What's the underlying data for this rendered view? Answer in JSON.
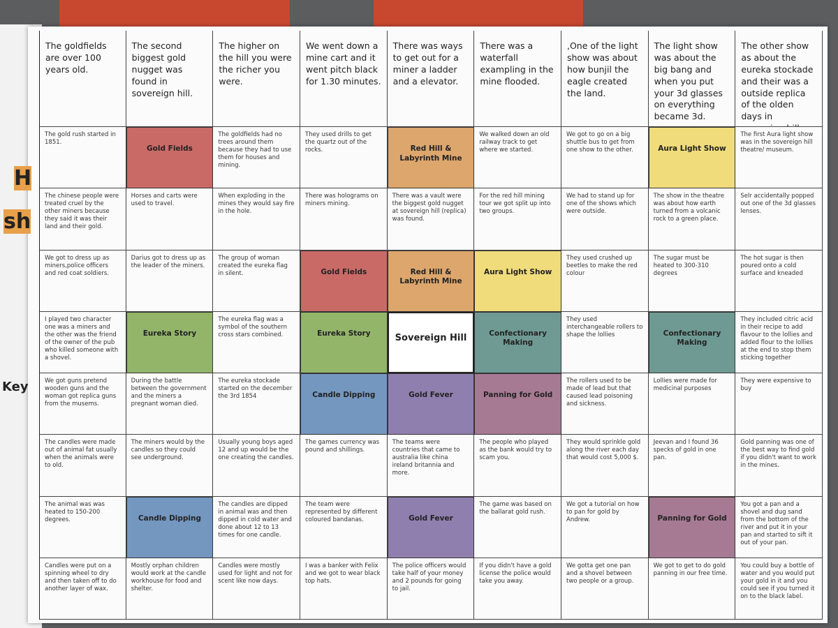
{
  "margin_fragments": [
    "H",
    "sh",
    "Key"
  ],
  "grid": {
    "rows": [
      [
        "The goldfields are over 100 years old.",
        "The second biggest gold nugget was found in sovereign hill.",
        "The higher on the hill you were the richer you were.",
        "We went down a mine cart and it went pitch black for 1.30 minutes.",
        "There was ways to get out for a miner a ladder and a elevator.",
        "There was a waterfall exampling in the mine flooded.",
        ",One of the light show was about how bunjil the eagle created the land.",
        "The light show was about the big bang and when you put your 3d glasses on everything became 3d.",
        "The other show as about the eureka stockade and their was a outside replica of the olden days in sovereign hill."
      ],
      [
        "The gold rush started in 1851.",
        {
          "text": "Gold Fields",
          "color": "#c96a67"
        },
        "The goldfields had no trees around them because they had to use them for houses and mining.",
        "They used drills to get the quartz out of the rocks.",
        {
          "text": "Red Hill & Labyrinth Mine",
          "color": "#dca66d"
        },
        "We walked down an old railway track to get where we started.",
        "We got to go on a big shuttle bus to get from one show to the other.",
        {
          "text": "Aura Light Show",
          "color": "#f0dc7a"
        },
        "The first Aura light show was in the sovereign hill theatre/ museum."
      ],
      [
        "The chinese people were treated cruel by the other miners because they said it was their land and their gold.",
        "Horses and carts were used to travel.",
        "When exploding in the mines they would say fire in the hole.",
        "There was holograms on miners mining.",
        "There was a vault were the biggest gold nugget at sovereign hill (replica) was found.",
        "For the red hill mining tour we got split up into two groups.",
        "We had to stand up for one of the shows which were outside.",
        "The show in the theatre was about how earth turned from a volcanic rock to a green place.",
        "Selr accidentally popped out one of the 3d glasses lenses."
      ],
      [
        "We got to dress up as miners,police officers and red coat soldiers.",
        "Darius got to dress up as the leader of the miners.",
        "The group of woman created the eureka flag in silent.",
        {
          "text": "Gold Fields",
          "color": "#c96a67"
        },
        {
          "text": "Red Hill & Labyrinth Mine",
          "color": "#dca66d"
        },
        {
          "text": "Aura Light Show",
          "color": "#f0dc7a"
        },
        "They used crushed up beetles to make the red colour",
        "The sugar must be heated to 300-310 degrees",
        "The hot sugar is then poured onto a cold surface and kneaded"
      ],
      [
        "I played two character one was a miners and the other was the friend of the owner of the pub who killed someone with a shovel.",
        {
          "text": "Eureka Story",
          "color": "#93b56a"
        },
        "The eureka flag was a symbol of the southern cross stars combined.",
        {
          "text": "Eureka Story",
          "color": "#93b56a"
        },
        {
          "text": "Sovereign Hill",
          "color": "#ffffff"
        },
        {
          "text": "Confectionary Making",
          "color": "#6f9a93"
        },
        "They used interchangeable rollers to shape the lollies",
        {
          "text": "Confectionary Making",
          "color": "#6f9a93"
        },
        "They included citric acid in their recipe to add flavour to the lollies and added flour to the lollies at the end to stop them sticking together"
      ],
      [
        "We got guns pretend wooden guns and the woman got replica guns from the musems.",
        "During the battle between the government and the miners a pregnant woman died.",
        "The eureka stockade started on the december the 3rd 1854",
        {
          "text": "Candle Dipping",
          "color": "#7497c0"
        },
        {
          "text": "Gold Fever",
          "color": "#8f7fae"
        },
        {
          "text": "Panning for Gold",
          "color": "#a67a92"
        },
        "The rollers used to be made of lead but that caused lead poisoning and sickness.",
        "Lollies were made for medicinal purposes",
        "They were expensive to buy"
      ],
      [
        "The candles were made out of animal fat usually when the animals were to old.",
        "The miners would by the candles so they could see underground.",
        "Usually young boys aged 12 and up would be the one creating the candles.",
        "The games currency was pound and shillings.",
        "The teams were countries that came to australia like china ireland britannia and more.",
        "The people who played as the bank would try to scam you.",
        "They would sprinkle gold along the river each day that would cost 5,000 $.",
        "Jeevan and I found 36 specks of gold in one pan.",
        "Gold panning was one of the best way to find gold if you didn't want to work in the mines."
      ],
      [
        "The animal was was heated to 150-200 degrees.",
        {
          "text": "Candle Dipping",
          "color": "#7497c0"
        },
        "The candles are dipped in animal was and then dipped in cold water and done about 12 to 13 times for one candle.",
        "The team were represented by different coloured bandanas.",
        {
          "text": "Gold Fever",
          "color": "#8f7fae"
        },
        "The game was based on the ballarat gold rush.",
        "We got a tutorial on how to pan for gold by Andrew.",
        {
          "text": "Panning for Gold",
          "color": "#a67a92"
        },
        "You got a pan and a shovel and dug sand from the bottom of the river and put it in your pan and started to sift it out of your pan."
      ],
      [
        "Candles were put on a spinning wheel to dry and then taken off to do another layer of wax.",
        "Mostly orphan children would work at the candle workhouse for food and shelter.",
        "Candles were mostly used for light and not for scent like now days.",
        "I was a banker with Felix and we got to wear black top hats.",
        "The police officers would take half of your money and 2 pounds for going to jail.",
        "If you didn't have a gold license the police would take you away.",
        "We gotta get one pan and a shovel between two people or a group.",
        "We got to get to do gold panning in our free time.",
        "You could buy a bottle of water and you would put your gold in it and you could see if you turned it on to the black label."
      ]
    ]
  }
}
